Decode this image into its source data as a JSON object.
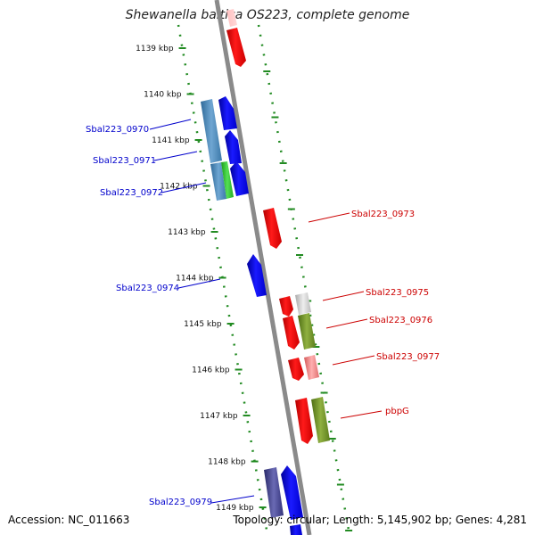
{
  "title": "Shewanella baltica OS223, complete genome",
  "footer": {
    "accession": "Accession: NC_011663",
    "topology": "Topology: circular; Length: 5,145,902 bp; Genes: 4,281"
  },
  "colors": {
    "forward": "#0000ff",
    "reverse": "#ff0000",
    "backbone": "#888888",
    "ticks": "#228b22",
    "label_forward": "#0000cc",
    "label_reverse": "#cc0000"
  },
  "ticks": [
    {
      "label": "1139 kbp"
    },
    {
      "label": "1140 kbp"
    },
    {
      "label": "1141 kbp"
    },
    {
      "label": "1142 kbp"
    },
    {
      "label": "1143 kbp"
    },
    {
      "label": "1144 kbp"
    },
    {
      "label": "1145 kbp"
    },
    {
      "label": "1146 kbp"
    },
    {
      "label": "1147 kbp"
    },
    {
      "label": "1148 kbp"
    },
    {
      "label": "1149 kbp"
    }
  ],
  "genes": [
    {
      "name": "Sbal223_0970"
    },
    {
      "name": "Sbal223_0971"
    },
    {
      "name": "Sbal223_0972"
    },
    {
      "name": "Sbal223_0973"
    },
    {
      "name": "Sbal223_0974"
    },
    {
      "name": "Sbal223_0975"
    },
    {
      "name": "Sbal223_0976"
    },
    {
      "name": "Sbal223_0977"
    },
    {
      "name": "pbpG"
    },
    {
      "name": "Sbal223_0979"
    }
  ]
}
